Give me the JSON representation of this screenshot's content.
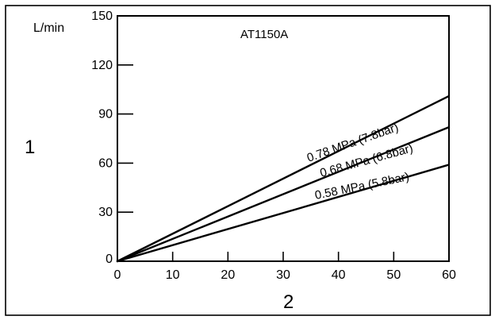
{
  "chart_data": {
    "type": "line",
    "title": "AT1150A",
    "y_unit": "L/min",
    "ylabel": "1",
    "xlabel": "2",
    "xlim": [
      0,
      60
    ],
    "ylim": [
      0,
      150
    ],
    "x_ticks": [
      0,
      10,
      20,
      30,
      40,
      50,
      60
    ],
    "y_ticks": [
      0,
      30,
      60,
      90,
      120,
      150
    ],
    "x_tick_labels": [
      "0",
      "10",
      "20",
      "30",
      "40",
      "50",
      "60"
    ],
    "y_tick_labels": [
      "0",
      "30",
      "60",
      "90",
      "120",
      "150"
    ],
    "grid": false,
    "legend": "none",
    "series": [
      {
        "name": "0.78 MPa (7.8bar)",
        "x": [
          0,
          60
        ],
        "y": [
          0,
          101
        ]
      },
      {
        "name": "0.68 MPa (6.8bar)",
        "x": [
          0,
          60
        ],
        "y": [
          0,
          82
        ]
      },
      {
        "name": "0.58 MPa (5.8bar)",
        "x": [
          0,
          60
        ],
        "y": [
          0,
          59
        ]
      }
    ]
  }
}
